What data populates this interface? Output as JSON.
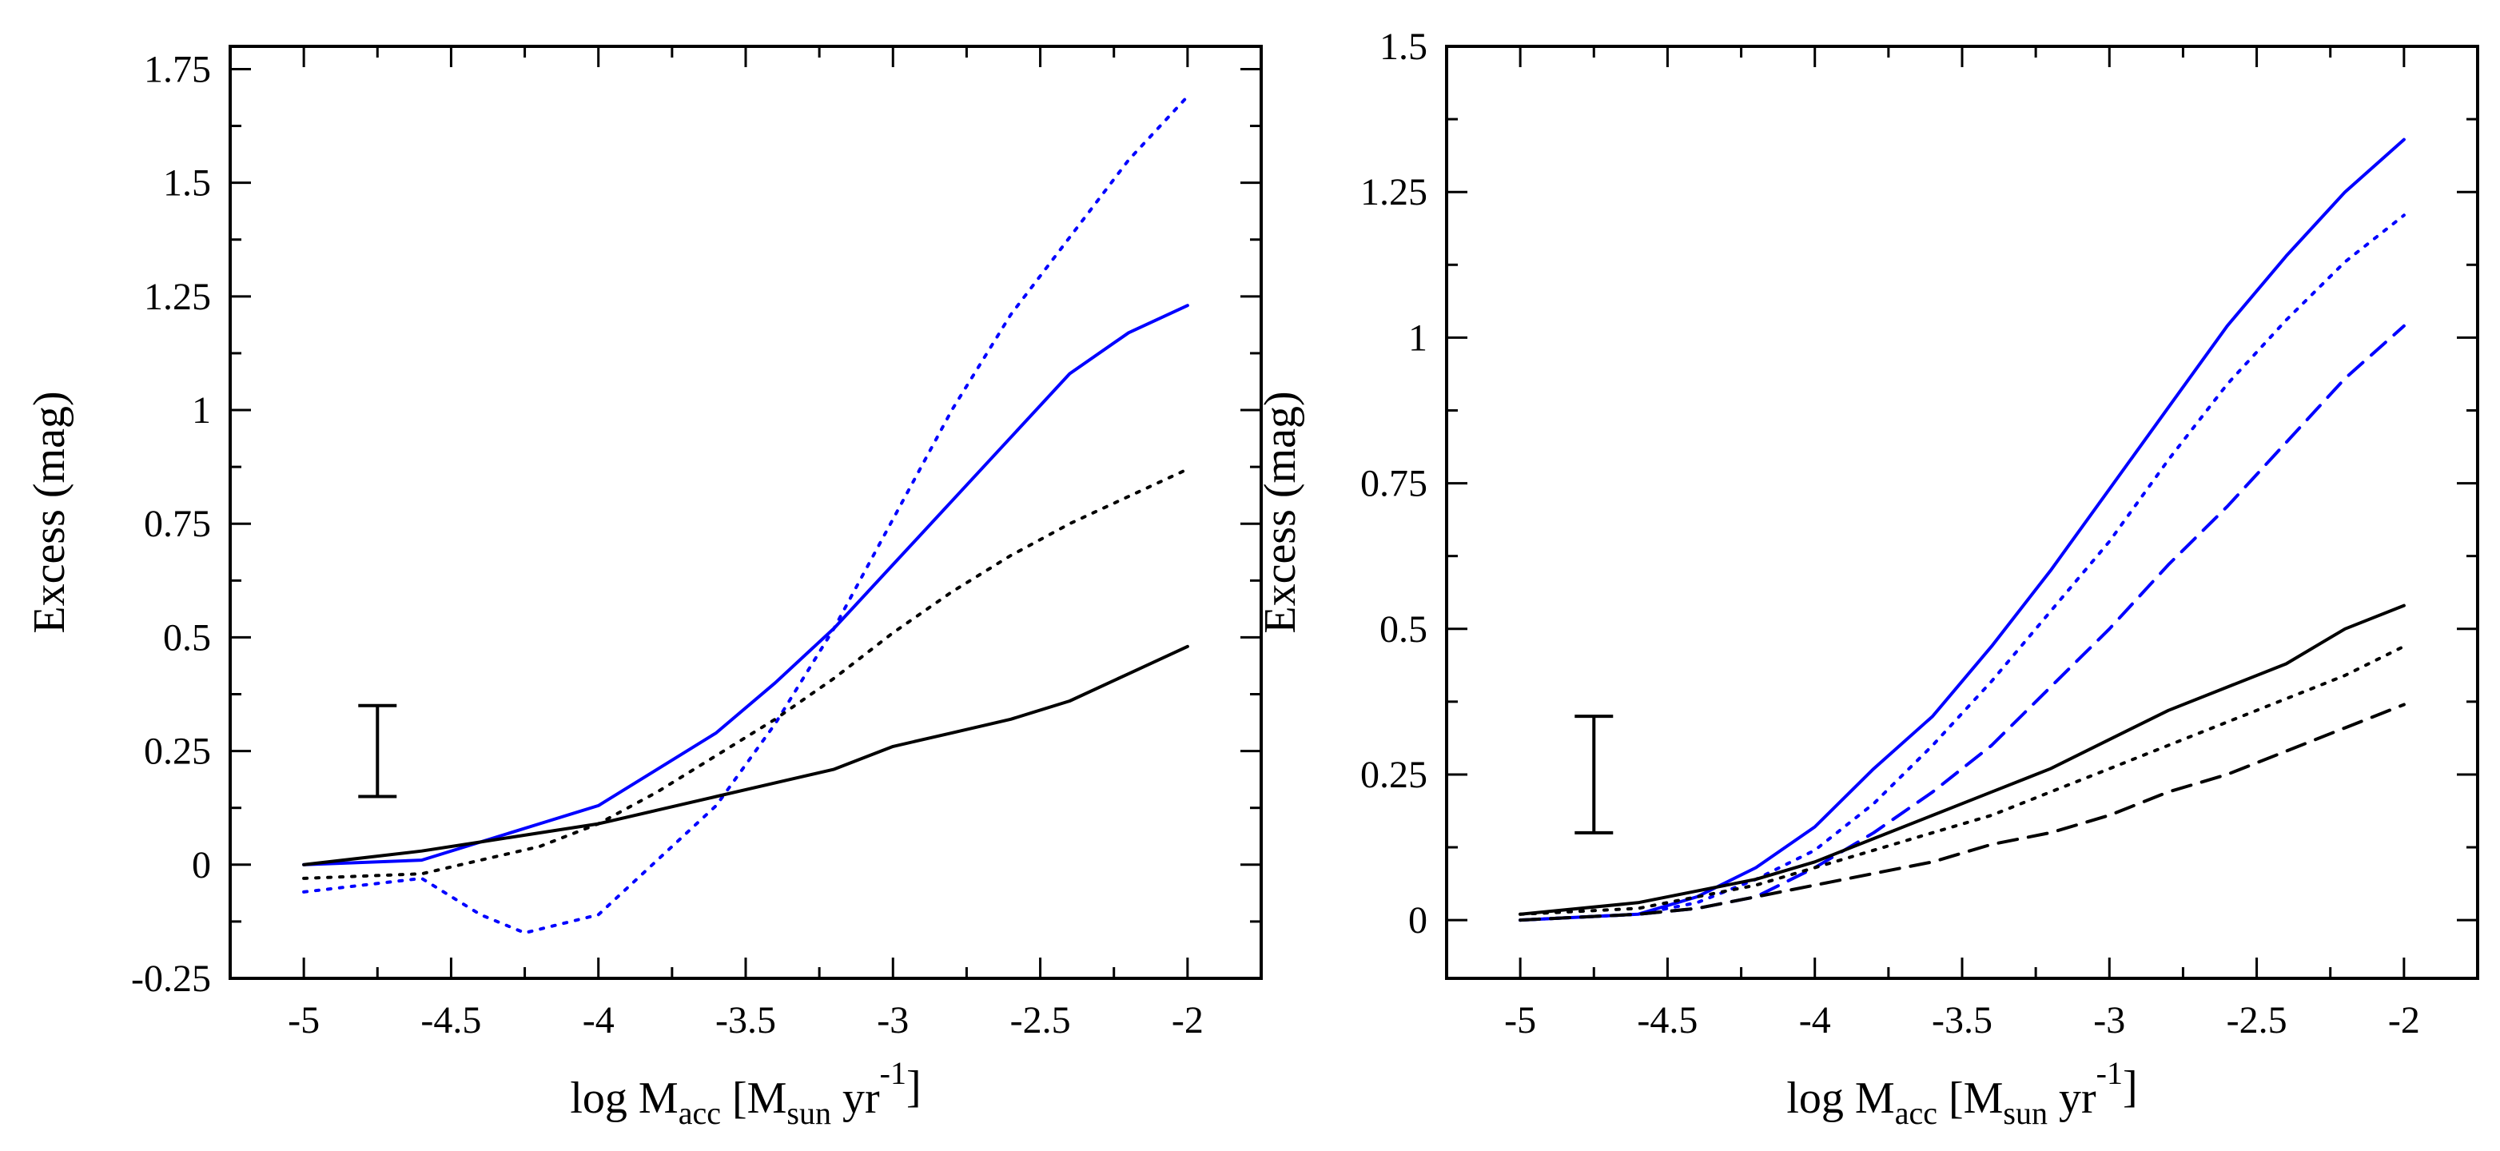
{
  "chart_data": [
    {
      "type": "line",
      "xlabel": {
        "main": "log M",
        "sub": "acc",
        "rest_open": " [M",
        "sub2": "sun",
        "mid": " yr",
        "sup": "-1",
        "close": "]"
      },
      "ylabel": "Excess (mag)",
      "xlim": [
        -5.25,
        -1.75
      ],
      "ylim": [
        -0.25,
        1.8
      ],
      "xticks": [
        -5,
        -4.5,
        -4,
        -3.5,
        -3,
        -2.5,
        -2
      ],
      "xtick_labels": [
        "-5",
        "-4.5",
        "-4",
        "-3.5",
        "-3",
        "-2.5",
        "-2"
      ],
      "yticks": [
        -0.25,
        0,
        0.25,
        0.5,
        0.75,
        1,
        1.25,
        1.5,
        1.75
      ],
      "ytick_labels": [
        "-0.25",
        "0",
        "0.25",
        "0.5",
        "0.75",
        "1",
        "1.25",
        "1.5",
        "1.75"
      ],
      "error_bar": {
        "x": -4.75,
        "y_low": 0.15,
        "y_high": 0.35
      },
      "series": [
        {
          "color": "#0000ff",
          "style": "solid",
          "x": [
            -5,
            -4.6,
            -4.4,
            -4.2,
            -4,
            -3.8,
            -3.6,
            -3.4,
            -3.2,
            -3,
            -2.8,
            -2.6,
            -2.4,
            -2.2,
            -2
          ],
          "values": [
            0,
            0.01,
            0.05,
            0.09,
            0.13,
            0.21,
            0.29,
            0.4,
            0.52,
            0.66,
            0.8,
            0.94,
            1.08,
            1.17,
            1.23
          ]
        },
        {
          "color": "#0000ff",
          "style": "dotted",
          "x": [
            -5,
            -4.6,
            -4.4,
            -4.25,
            -4,
            -3.8,
            -3.6,
            -3.4,
            -3.2,
            -3,
            -2.8,
            -2.6,
            -2.4,
            -2.2,
            -2
          ],
          "values": [
            -0.06,
            -0.03,
            -0.11,
            -0.15,
            -0.11,
            0.01,
            0.13,
            0.31,
            0.52,
            0.76,
            1.0,
            1.21,
            1.38,
            1.55,
            1.69
          ]
        },
        {
          "color": "#000000",
          "style": "solid",
          "x": [
            -5,
            -4.6,
            -4.4,
            -4.2,
            -4,
            -3.8,
            -3.6,
            -3.4,
            -3.2,
            -3,
            -2.8,
            -2.6,
            -2.4,
            -2.2,
            -2
          ],
          "values": [
            0,
            0.03,
            0.05,
            0.07,
            0.09,
            0.12,
            0.15,
            0.18,
            0.21,
            0.26,
            0.29,
            0.32,
            0.36,
            0.42,
            0.48
          ]
        },
        {
          "color": "#000000",
          "style": "dotted",
          "x": [
            -5,
            -4.6,
            -4.4,
            -4.2,
            -4,
            -3.8,
            -3.6,
            -3.4,
            -3.2,
            -3,
            -2.8,
            -2.6,
            -2.4,
            -2.2,
            -2
          ],
          "values": [
            -0.03,
            -0.02,
            0.01,
            0.04,
            0.09,
            0.16,
            0.24,
            0.32,
            0.41,
            0.51,
            0.6,
            0.68,
            0.75,
            0.81,
            0.87
          ]
        }
      ]
    },
    {
      "type": "line",
      "xlabel": {
        "main": "log M",
        "sub": "acc",
        "rest_open": " [M",
        "sub2": "sun",
        "mid": " yr",
        "sup": "-1",
        "close": "]"
      },
      "ylabel": "Excess (mag)",
      "xlim": [
        -5.25,
        -1.75
      ],
      "ylim": [
        -0.1,
        1.5
      ],
      "xticks": [
        -5,
        -4.5,
        -4,
        -3.5,
        -3,
        -2.5,
        -2
      ],
      "xtick_labels": [
        "-5",
        "-4.5",
        "-4",
        "-3.5",
        "-3",
        "-2.5",
        "-2"
      ],
      "yticks": [
        0,
        0.25,
        0.5,
        0.75,
        1,
        1.25,
        1.5
      ],
      "ytick_labels": [
        "0",
        "0.25",
        "0.5",
        "0.75",
        "1",
        "1.25",
        "1.5"
      ],
      "error_bar": {
        "x": -4.75,
        "y_low": 0.15,
        "y_high": 0.35
      },
      "series": [
        {
          "color": "#0000ff",
          "style": "solid",
          "x": [
            -5,
            -4.6,
            -4.4,
            -4.2,
            -4,
            -3.8,
            -3.6,
            -3.4,
            -3.2,
            -3,
            -2.8,
            -2.6,
            -2.4,
            -2.2,
            -2
          ],
          "values": [
            0,
            0.01,
            0.04,
            0.09,
            0.16,
            0.26,
            0.35,
            0.47,
            0.6,
            0.74,
            0.88,
            1.02,
            1.14,
            1.25,
            1.34
          ]
        },
        {
          "color": "#0000ff",
          "style": "dotted",
          "x": [
            -5,
            -4.6,
            -4.4,
            -4.2,
            -4,
            -3.8,
            -3.6,
            -3.4,
            -3.2,
            -3,
            -2.8,
            -2.6,
            -2.4,
            -2.2,
            -2
          ],
          "values": [
            0,
            0.01,
            0.03,
            0.07,
            0.12,
            0.2,
            0.3,
            0.41,
            0.53,
            0.65,
            0.79,
            0.92,
            1.03,
            1.13,
            1.21
          ]
        },
        {
          "color": "#0000ff",
          "style": "dashed",
          "x": [
            -5,
            -4.6,
            -4.4,
            -4.2,
            -4,
            -3.8,
            -3.6,
            -3.4,
            -3.2,
            -3,
            -2.8,
            -2.6,
            -2.4,
            -2.2,
            -2
          ],
          "values": [
            0,
            0.01,
            0.02,
            0.04,
            0.09,
            0.15,
            0.22,
            0.3,
            0.4,
            0.5,
            0.61,
            0.71,
            0.82,
            0.93,
            1.02
          ]
        },
        {
          "color": "#000000",
          "style": "solid",
          "x": [
            -5,
            -4.6,
            -4.4,
            -4.2,
            -4,
            -3.8,
            -3.6,
            -3.4,
            -3.2,
            -3,
            -2.8,
            -2.6,
            -2.4,
            -2.2,
            -2
          ],
          "values": [
            0.01,
            0.03,
            0.05,
            0.07,
            0.1,
            0.14,
            0.18,
            0.22,
            0.26,
            0.31,
            0.36,
            0.4,
            0.44,
            0.5,
            0.54
          ]
        },
        {
          "color": "#000000",
          "style": "dotted",
          "x": [
            -5,
            -4.6,
            -4.4,
            -4.2,
            -4,
            -3.8,
            -3.6,
            -3.4,
            -3.2,
            -3,
            -2.8,
            -2.6,
            -2.4,
            -2.2,
            -2
          ],
          "values": [
            0.01,
            0.02,
            0.04,
            0.06,
            0.09,
            0.12,
            0.15,
            0.18,
            0.22,
            0.26,
            0.3,
            0.34,
            0.38,
            0.42,
            0.47
          ]
        },
        {
          "color": "#000000",
          "style": "dashed",
          "x": [
            -5,
            -4.6,
            -4.4,
            -4.2,
            -4,
            -3.8,
            -3.6,
            -3.4,
            -3.2,
            -3,
            -2.8,
            -2.6,
            -2.4,
            -2.2,
            -2
          ],
          "values": [
            0,
            0.01,
            0.02,
            0.04,
            0.06,
            0.08,
            0.1,
            0.13,
            0.15,
            0.18,
            0.22,
            0.25,
            0.29,
            0.33,
            0.37
          ]
        }
      ]
    }
  ]
}
